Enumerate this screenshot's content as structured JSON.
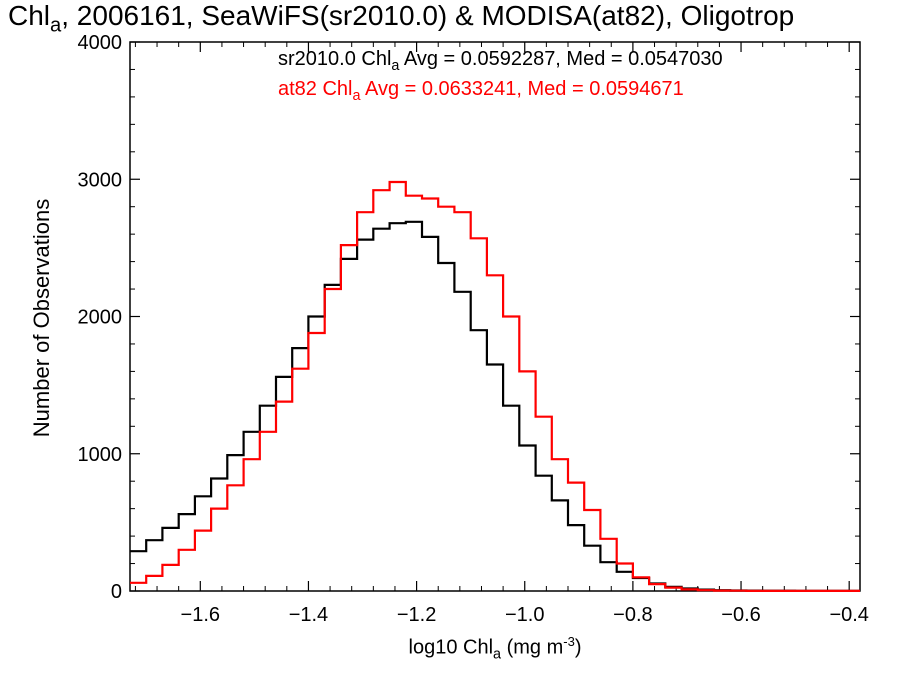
{
  "title": {
    "main": "Chl",
    "sub": "a",
    "rest": ", 2006161, SeaWiFS(sr2010.0) & MODISA(at82), Oligotrop"
  },
  "stats": [
    {
      "pre": "sr2010.0 Chl",
      "sub": "a",
      "post": " Avg = 0.0592287, Med = 0.0547030",
      "color": "#000000"
    },
    {
      "pre": "at82 Chl",
      "sub": "a",
      "post": " Avg = 0.0633241, Med = 0.0594671",
      "color": "#ff0000"
    }
  ],
  "chart_data": {
    "type": "line",
    "style": "step histogram",
    "xlabel": {
      "pre": "log10 Chl",
      "sub": "a",
      "mid": " (mg m",
      "sup": "-3",
      "post": ")"
    },
    "ylabel": "Number of Observations",
    "xlim": [
      -1.73,
      -0.38
    ],
    "ylim": [
      0,
      4000
    ],
    "xticks": [
      -1.6,
      -1.4,
      -1.2,
      -1.0,
      -0.8,
      -0.6,
      -0.4
    ],
    "xtick_labels": [
      "−1.6",
      "−1.4",
      "−1.2",
      "−1.0",
      "−0.8",
      "−0.6",
      "−0.4"
    ],
    "yticks": [
      0,
      1000,
      2000,
      3000,
      4000
    ],
    "ytick_labels": [
      "0",
      "1000",
      "2000",
      "3000",
      "4000"
    ],
    "x": [
      -1.73,
      -1.7,
      -1.67,
      -1.64,
      -1.61,
      -1.58,
      -1.55,
      -1.52,
      -1.49,
      -1.46,
      -1.43,
      -1.4,
      -1.37,
      -1.34,
      -1.31,
      -1.28,
      -1.25,
      -1.22,
      -1.19,
      -1.16,
      -1.13,
      -1.1,
      -1.07,
      -1.04,
      -1.01,
      -0.98,
      -0.95,
      -0.92,
      -0.89,
      -0.86,
      -0.83,
      -0.8,
      -0.77,
      -0.74,
      -0.71,
      -0.68,
      -0.65,
      -0.62,
      -0.59,
      -0.56,
      -0.53,
      -0.5,
      -0.47,
      -0.44,
      -0.41,
      -0.38
    ],
    "series": [
      {
        "name": "sr2010.0",
        "color": "#000000",
        "values": [
          290,
          370,
          460,
          560,
          690,
          820,
          990,
          1160,
          1350,
          1560,
          1770,
          2000,
          2230,
          2420,
          2560,
          2640,
          2680,
          2690,
          2580,
          2390,
          2180,
          1900,
          1650,
          1350,
          1060,
          840,
          660,
          480,
          330,
          210,
          140,
          95,
          55,
          30,
          18,
          10,
          6,
          4,
          3,
          2,
          2,
          1,
          1,
          1,
          1,
          1
        ]
      },
      {
        "name": "at82",
        "color": "#ff0000",
        "values": [
          60,
          110,
          190,
          300,
          440,
          600,
          770,
          960,
          1160,
          1380,
          1620,
          1880,
          2200,
          2520,
          2760,
          2920,
          2980,
          2880,
          2860,
          2800,
          2760,
          2570,
          2300,
          2000,
          1600,
          1270,
          960,
          790,
          590,
          380,
          200,
          100,
          50,
          25,
          12,
          6,
          3,
          2,
          1,
          1,
          1,
          1,
          1,
          1,
          1,
          1
        ]
      }
    ]
  }
}
